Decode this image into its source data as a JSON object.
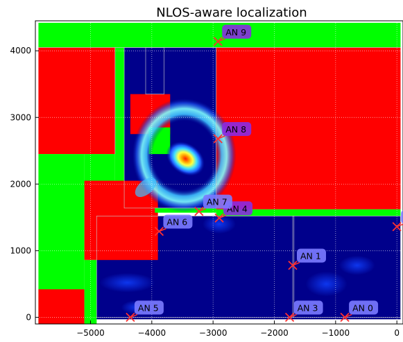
{
  "chart_data": {
    "type": "heatmap",
    "title": "NLOS-aware localization",
    "xlabel": "",
    "ylabel": "",
    "xlim": [
      -5900,
      100
    ],
    "ylim": [
      -100,
      4450
    ],
    "x_ticks": [
      -5000,
      -4000,
      -3000,
      -2000,
      -1000,
      0
    ],
    "x_tick_labels": [
      "−5000",
      "−4000",
      "−3000",
      "−2000",
      "−1000",
      "0"
    ],
    "y_ticks": [
      0,
      1000,
      2000,
      3000,
      4000
    ],
    "y_tick_labels": [
      "0",
      "1000",
      "2000",
      "3000",
      "4000"
    ],
    "grid": true,
    "colors": {
      "nlos_region": "#ff0000",
      "los_region": "#00ff00",
      "heatmap_low": "#00008b",
      "anchor_label_los": "#7b7bff",
      "anchor_label_nlos": "#8a2be2",
      "anchor_marker": "#ff3030"
    },
    "anchors": [
      {
        "label": "AN 0",
        "x": -850,
        "y": 0,
        "style": "los"
      },
      {
        "label": "AN 1",
        "x": -1700,
        "y": 780,
        "style": "los"
      },
      {
        "label": "AN 3",
        "x": -1750,
        "y": 0,
        "style": "los"
      },
      {
        "label": "AN 4",
        "x": -2900,
        "y": 1490,
        "style": "nlos"
      },
      {
        "label": "AN 5",
        "x": -4350,
        "y": 0,
        "style": "los"
      },
      {
        "label": "AN 6",
        "x": -3880,
        "y": 1290,
        "style": "los"
      },
      {
        "label": "AN 7",
        "x": -3230,
        "y": 1590,
        "style": "los"
      },
      {
        "label": "AN 8",
        "x": -2920,
        "y": 2680,
        "style": "nlos"
      },
      {
        "label": "AN 9",
        "x": -2920,
        "y": 4140,
        "style": "nlos"
      },
      {
        "label": "AN",
        "x": 0,
        "y": 1360,
        "style": "los"
      }
    ],
    "regions": [
      {
        "kind": "los",
        "x0": -5850,
        "x1": 60,
        "y0": 4050,
        "y1": 4420
      },
      {
        "kind": "nlos",
        "x0": -5850,
        "x1": -4600,
        "y0": 2450,
        "y1": 4050
      },
      {
        "kind": "los",
        "x0": -5850,
        "x1": -5100,
        "y0": -100,
        "y1": 2450
      },
      {
        "kind": "los",
        "x0": -5100,
        "x1": -4600,
        "y0": 1950,
        "y1": 2450
      },
      {
        "kind": "nlos",
        "x0": -2950,
        "x1": 60,
        "y0": 1620,
        "y1": 4050
      },
      {
        "kind": "nlos",
        "x0": -5100,
        "x1": -3900,
        "y0": 860,
        "y1": 2050
      },
      {
        "kind": "nlos",
        "x0": -5850,
        "x1": -5100,
        "y0": -100,
        "y1": 420
      },
      {
        "kind": "los",
        "x0": -5100,
        "x1": -4900,
        "y0": -100,
        "y1": 860
      },
      {
        "kind": "nlos",
        "x0": -4350,
        "x1": -3700,
        "y0": 2750,
        "y1": 3350
      },
      {
        "kind": "los",
        "x0": -4050,
        "x1": -3700,
        "y0": 2450,
        "y1": 2850
      },
      {
        "kind": "los",
        "x0": -4600,
        "x1": -4450,
        "y0": 2050,
        "y1": 4050
      },
      {
        "kind": "los",
        "x0": -3950,
        "x1": -2950,
        "y0": 1570,
        "y1": 1640
      },
      {
        "kind": "los",
        "x0": -2950,
        "x1": 60,
        "y0": 1520,
        "y1": 1620
      }
    ],
    "heat_areas": [
      {
        "x0": -4450,
        "x1": -2950,
        "y0": 1640,
        "y1": 4050
      },
      {
        "x0": -4900,
        "x1": 60,
        "y0": -30,
        "y1": 1520
      }
    ],
    "hotspot": {
      "x": -3450,
      "y": 2380
    }
  }
}
